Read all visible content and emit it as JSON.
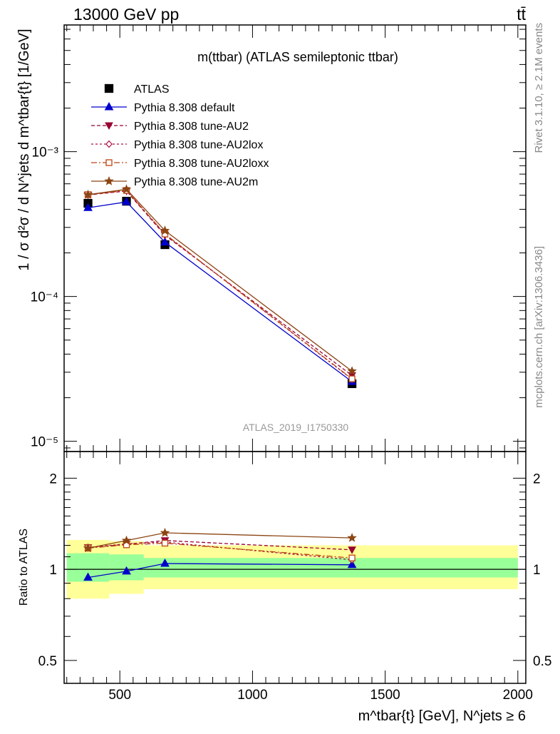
{
  "header": {
    "left": "13000 GeV pp",
    "right": "tt̄"
  },
  "side": {
    "rivet": "Rivet 3.1.10, ≥ 2.1M events",
    "mcplots": "mcplots.cern.ch [arXiv:1306.3436]"
  },
  "chart_data": [
    {
      "type": "line",
      "title": "m(ttbar) (ATLAS semileptonic ttbar)",
      "watermark": "ATLAS_2019_I1750330",
      "ylabel": "1 / σ d²σ / d N^jets d m^tbar{t} [1/GeV]",
      "y_scale": "log",
      "ylim": [
        8.5e-06,
        0.0075
      ],
      "xlim": [
        290,
        2030
      ],
      "y_ticks": [
        {
          "value": 0.001,
          "label": "10⁻³"
        },
        {
          "value": 0.0001,
          "label": "10⁻⁴"
        },
        {
          "value": 1e-05,
          "label": "10⁻⁵"
        }
      ],
      "legend_position": "top-left",
      "x": [
        380,
        525,
        670,
        1375
      ],
      "series": [
        {
          "name": "ATLAS",
          "color": "#000000",
          "values": [
            0.00044,
            0.000455,
            0.000228,
            2.5e-05
          ]
        },
        {
          "name": "Pythia 8.308 default",
          "color": "#0000cc",
          "values": [
            0.00041,
            0.00045,
            0.000237,
            2.58e-05
          ]
        },
        {
          "name": "Pythia 8.308 tune-AU2",
          "color": "#990033",
          "values": [
            0.000503,
            0.000535,
            0.000265,
            2.85e-05
          ]
        },
        {
          "name": "Pythia 8.308 tune-AU2lox",
          "color": "#aa1144",
          "values": [
            0.000505,
            0.00054,
            0.00027,
            2.68e-05
          ]
        },
        {
          "name": "Pythia 8.308 tune-AU2loxx",
          "color": "#bb4411",
          "values": [
            0.000505,
            0.00054,
            0.00027,
            2.7e-05
          ]
        },
        {
          "name": "Pythia 8.308 tune-AU2m",
          "color": "#8b4513",
          "values": [
            0.000505,
            0.00055,
            0.000285,
            3.05e-05
          ]
        }
      ]
    },
    {
      "type": "line",
      "ylabel": "Ratio to ATLAS",
      "y_scale": "log",
      "ylim": [
        0.42,
        2.45
      ],
      "xlim": [
        290,
        2030
      ],
      "xlabel": "m^tbar{t} [GeV], N^jets ≥ 6",
      "x_ticks": [
        {
          "value": 500,
          "label": "500"
        },
        {
          "value": 1000,
          "label": "1000"
        },
        {
          "value": 1500,
          "label": "1500"
        },
        {
          "value": 2000,
          "label": "2000"
        }
      ],
      "y_ticks": [
        {
          "value": 0.5,
          "label": "0.5"
        },
        {
          "value": 1,
          "label": "1"
        },
        {
          "value": 2,
          "label": "2"
        }
      ],
      "bands": [
        {
          "x0": 300,
          "x1": 460,
          "green": [
            0.91,
            1.13
          ],
          "yellow": [
            0.8,
            1.25
          ]
        },
        {
          "x0": 460,
          "x1": 590,
          "green": [
            0.92,
            1.12
          ],
          "yellow": [
            0.83,
            1.24
          ]
        },
        {
          "x0": 590,
          "x1": 2000,
          "green": [
            0.94,
            1.09
          ],
          "yellow": [
            0.86,
            1.2
          ]
        }
      ],
      "x": [
        380,
        525,
        670,
        1375
      ],
      "series": [
        {
          "name": "Pythia 8.308 default",
          "color": "#0000cc",
          "values": [
            0.94,
            0.985,
            1.045,
            1.035
          ]
        },
        {
          "name": "Pythia 8.308 tune-AU2",
          "color": "#990033",
          "values": [
            1.18,
            1.21,
            1.245,
            1.16
          ]
        },
        {
          "name": "Pythia 8.308 tune-AU2lox",
          "color": "#aa1144",
          "values": [
            1.18,
            1.215,
            1.23,
            1.075
          ]
        },
        {
          "name": "Pythia 8.308 tune-AU2loxx",
          "color": "#bb4411",
          "values": [
            1.175,
            1.205,
            1.22,
            1.09
          ]
        },
        {
          "name": "Pythia 8.308 tune-AU2m",
          "color": "#8b4513",
          "values": [
            1.175,
            1.245,
            1.32,
            1.27
          ]
        }
      ]
    }
  ]
}
